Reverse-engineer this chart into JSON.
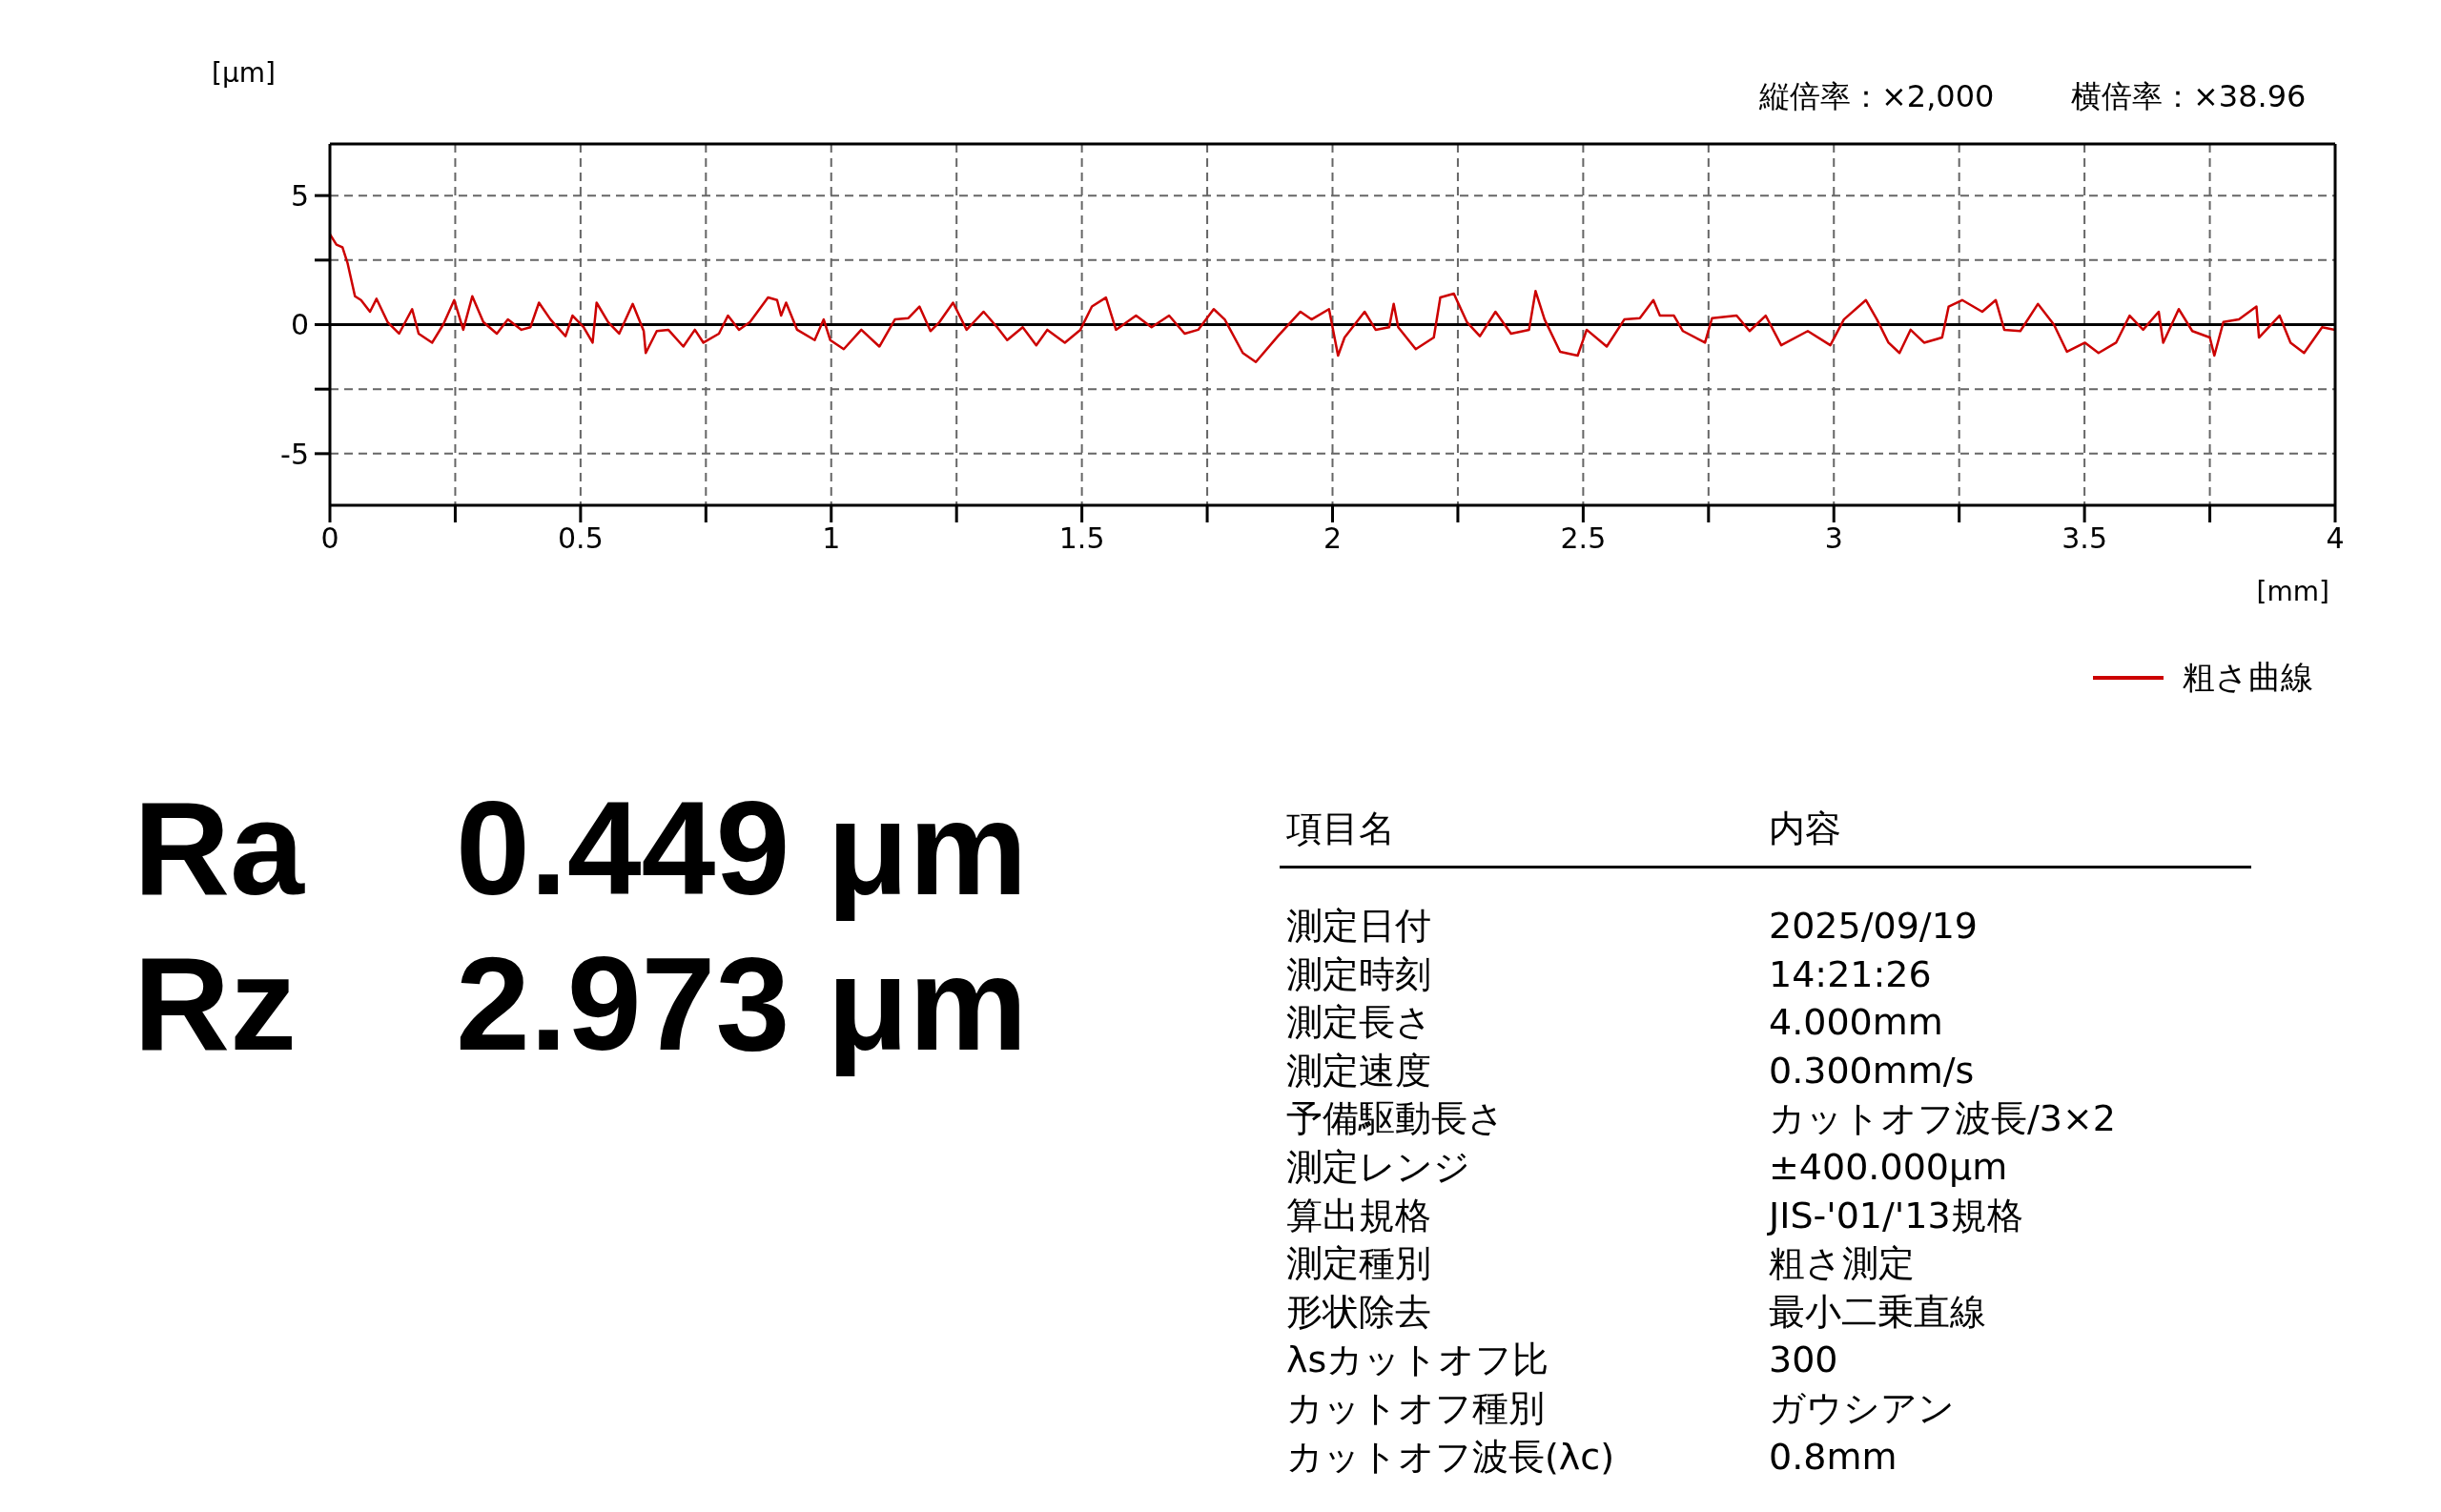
{
  "chart_data": {
    "type": "line",
    "ylabel": "[μm]",
    "xlabel": "[mm]",
    "annotations": [
      "縦倍率：×2,000",
      "横倍率：×38.96",
      "Ra",
      "0.449 μm",
      "Rz",
      "2.973 μm",
      "項目名",
      "内容",
      "測定日付",
      "2025/09/19",
      "測定時刻",
      "14:21:26",
      "測定長さ",
      "4.000mm",
      "測定速度",
      "0.300mm/s",
      "予備駆動長さ",
      "カットオフ波長/3×2",
      "測定レンジ",
      "±400.000μm",
      "算出規格",
      "JIS-'01/'13規格",
      "測定種別",
      "粗さ測定",
      "形状除去",
      "最小二乗直線",
      "λsカットオフ比",
      "300",
      "カットオフ種別",
      "ガウシアン",
      "カットオフ波長(λc)",
      "0.8mm"
    ],
    "xlim": [
      0,
      4
    ],
    "ylim": [
      -7,
      7
    ],
    "xticks": [
      0,
      {
        "value": 0.25,
        "label": null
      },
      0.5,
      {
        "value": 0.75,
        "label": null
      },
      1,
      {
        "value": 1.25,
        "label": null
      },
      1.5,
      {
        "value": 1.75,
        "label": null
      },
      2,
      {
        "value": 2.25,
        "label": null
      },
      2.5,
      {
        "value": 2.75,
        "label": null
      },
      3,
      {
        "value": 3.25,
        "label": null
      },
      3.5,
      {
        "value": 3.75,
        "label": null
      },
      4
    ],
    "yticks": [
      -5,
      {
        "value": -2.5,
        "label": null
      },
      0,
      {
        "value": 2.5,
        "label": null
      },
      5
    ],
    "grid": true,
    "legend": "bottom right",
    "ref_lines": [
      {
        "axis": "y",
        "value": 0,
        "color": "#000000"
      }
    ],
    "x": [
      0,
      0.013,
      0.025,
      0.035,
      0.05,
      0.062,
      0.08,
      0.093,
      0.115,
      0.138,
      0.164,
      0.177,
      0.204,
      0.226,
      0.248,
      0.266,
      0.284,
      0.306,
      0.333,
      0.355,
      0.382,
      0.4,
      0.417,
      0.44,
      0.47,
      0.484,
      0.506,
      0.524,
      0.532,
      0.555,
      0.577,
      0.604,
      0.626,
      0.63,
      0.652,
      0.675,
      0.705,
      0.728,
      0.745,
      0.776,
      0.794,
      0.816,
      0.838,
      0.874,
      0.892,
      0.9,
      0.91,
      0.932,
      0.967,
      0.985,
      0.998,
      1.025,
      1.06,
      1.096,
      1.127,
      1.154,
      1.176,
      1.198,
      1.216,
      1.243,
      1.27,
      1.304,
      1.331,
      1.351,
      1.382,
      1.409,
      1.431,
      1.466,
      1.497,
      1.52,
      1.548,
      1.568,
      1.608,
      1.639,
      1.674,
      1.705,
      1.732,
      1.763,
      1.785,
      1.821,
      1.847,
      1.891,
      1.936,
      1.958,
      1.993,
      2.011,
      2.024,
      2.064,
      2.086,
      2.113,
      2.122,
      2.131,
      2.166,
      2.202,
      2.215,
      2.242,
      2.268,
      2.294,
      2.325,
      2.356,
      2.392,
      2.405,
      2.423,
      2.454,
      2.489,
      2.507,
      2.547,
      2.582,
      2.613,
      2.64,
      2.653,
      2.681,
      2.699,
      2.743,
      2.757,
      2.806,
      2.832,
      2.864,
      2.895,
      2.948,
      2.993,
      3.02,
      3.064,
      3.086,
      3.109,
      3.131,
      3.153,
      3.18,
      3.216,
      3.229,
      3.256,
      3.296,
      3.323,
      3.34,
      3.372,
      3.407,
      3.439,
      3.465,
      3.501,
      3.528,
      3.563,
      3.59,
      3.617,
      3.648,
      3.657,
      3.688,
      3.715,
      3.75,
      3.759,
      3.777,
      3.808,
      3.843,
      3.848,
      3.889,
      3.911,
      3.938,
      3.974,
      4
    ],
    "series": [
      {
        "name": "粗さ曲線",
        "color": "#cc0000",
        "values": [
          3.5,
          3.1,
          3.0,
          2.4,
          1.1,
          0.95,
          0.5,
          1.0,
          0.1,
          -0.35,
          0.6,
          -0.35,
          -0.7,
          0,
          0.95,
          -0.2,
          1.1,
          0.1,
          -0.35,
          0.2,
          -0.2,
          -0.1,
          0.85,
          0.2,
          -0.45,
          0.35,
          -0.1,
          -0.7,
          0.85,
          0.1,
          -0.35,
          0.8,
          -0.25,
          -1.1,
          -0.25,
          -0.2,
          -0.85,
          -0.2,
          -0.7,
          -0.35,
          0.35,
          -0.2,
          0.1,
          1.05,
          0.95,
          0.35,
          0.85,
          -0.2,
          -0.6,
          0.2,
          -0.6,
          -0.95,
          -0.2,
          -0.85,
          0.2,
          0.25,
          0.7,
          -0.25,
          0.1,
          0.85,
          -0.2,
          0.5,
          -0.1,
          -0.6,
          -0.1,
          -0.8,
          -0.2,
          -0.7,
          -0.2,
          0.7,
          1.05,
          -0.2,
          0.35,
          -0.1,
          0.35,
          -0.35,
          -0.2,
          0.6,
          0.2,
          -1.1,
          -1.45,
          -0.45,
          0.5,
          0.2,
          0.6,
          -1.2,
          -0.5,
          0.5,
          -0.2,
          -0.1,
          0.8,
          -0.1,
          -0.95,
          -0.5,
          1.05,
          1.2,
          0.1,
          -0.45,
          0.5,
          -0.35,
          -0.2,
          1.3,
          0.2,
          -1.05,
          -1.2,
          -0.2,
          -0.85,
          0.2,
          0.25,
          0.95,
          0.35,
          0.35,
          -0.25,
          -0.7,
          0.25,
          0.35,
          -0.25,
          0.35,
          -0.8,
          -0.25,
          -0.8,
          0.2,
          0.95,
          0.2,
          -0.7,
          -1.1,
          -0.2,
          -0.7,
          -0.5,
          0.7,
          0.95,
          0.5,
          0.95,
          -0.2,
          -0.25,
          0.8,
          0,
          -1.05,
          -0.7,
          -1.1,
          -0.7,
          0.35,
          -0.2,
          0.5,
          -0.7,
          0.6,
          -0.25,
          -0.5,
          -1.2,
          0.1,
          0.2,
          0.7,
          -0.5,
          0.35,
          -0.7,
          -1.1,
          -0.1,
          -0.2
        ]
      }
    ]
  }
}
